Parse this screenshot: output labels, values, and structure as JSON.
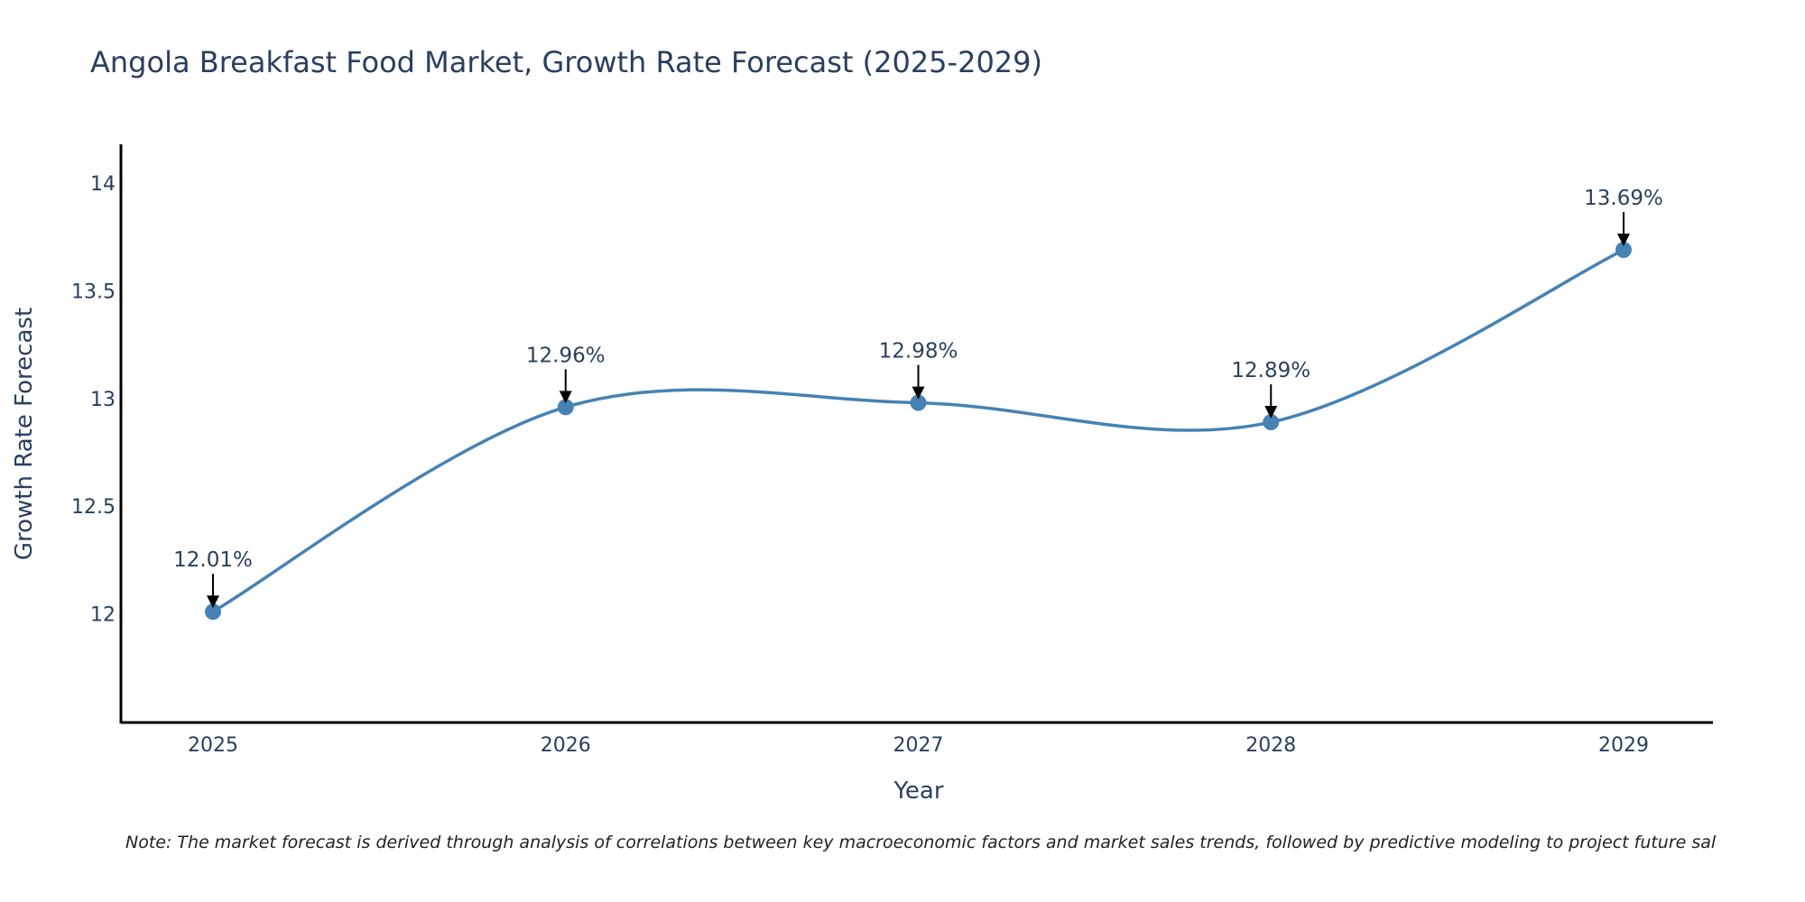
{
  "chart_data": {
    "type": "line",
    "title": "Angola Breakfast Food Market, Growth Rate Forecast (2025-2029)",
    "xlabel": "Year",
    "ylabel": "Growth Rate Forecast",
    "categories": [
      "2025",
      "2026",
      "2027",
      "2028",
      "2029"
    ],
    "x_tick_labels": [
      "2025",
      "2026",
      "2027",
      "2028",
      "2029"
    ],
    "values": [
      12.01,
      12.96,
      12.98,
      12.89,
      13.69
    ],
    "annotations": [
      "12.01%",
      "12.96%",
      "12.98%",
      "12.89%",
      "13.69%"
    ],
    "y_ticks": [
      12,
      12.5,
      13,
      13.5,
      14
    ],
    "y_tick_labels": [
      "12",
      "12.5",
      "13",
      "13.5",
      "14"
    ],
    "ylim": [
      11.5,
      14.18
    ],
    "grid": false,
    "legend": "none",
    "line_shape": "spline",
    "colors": {
      "line": "#4682b4",
      "marker": "#4682b4",
      "text": "#2a3f5f",
      "axis": "#000000",
      "arrow": "#000000"
    }
  },
  "note": "Note: The market forecast is derived through analysis of correlations between key macroeconomic factors and market sales trends, followed by predictive modeling to project future sal"
}
